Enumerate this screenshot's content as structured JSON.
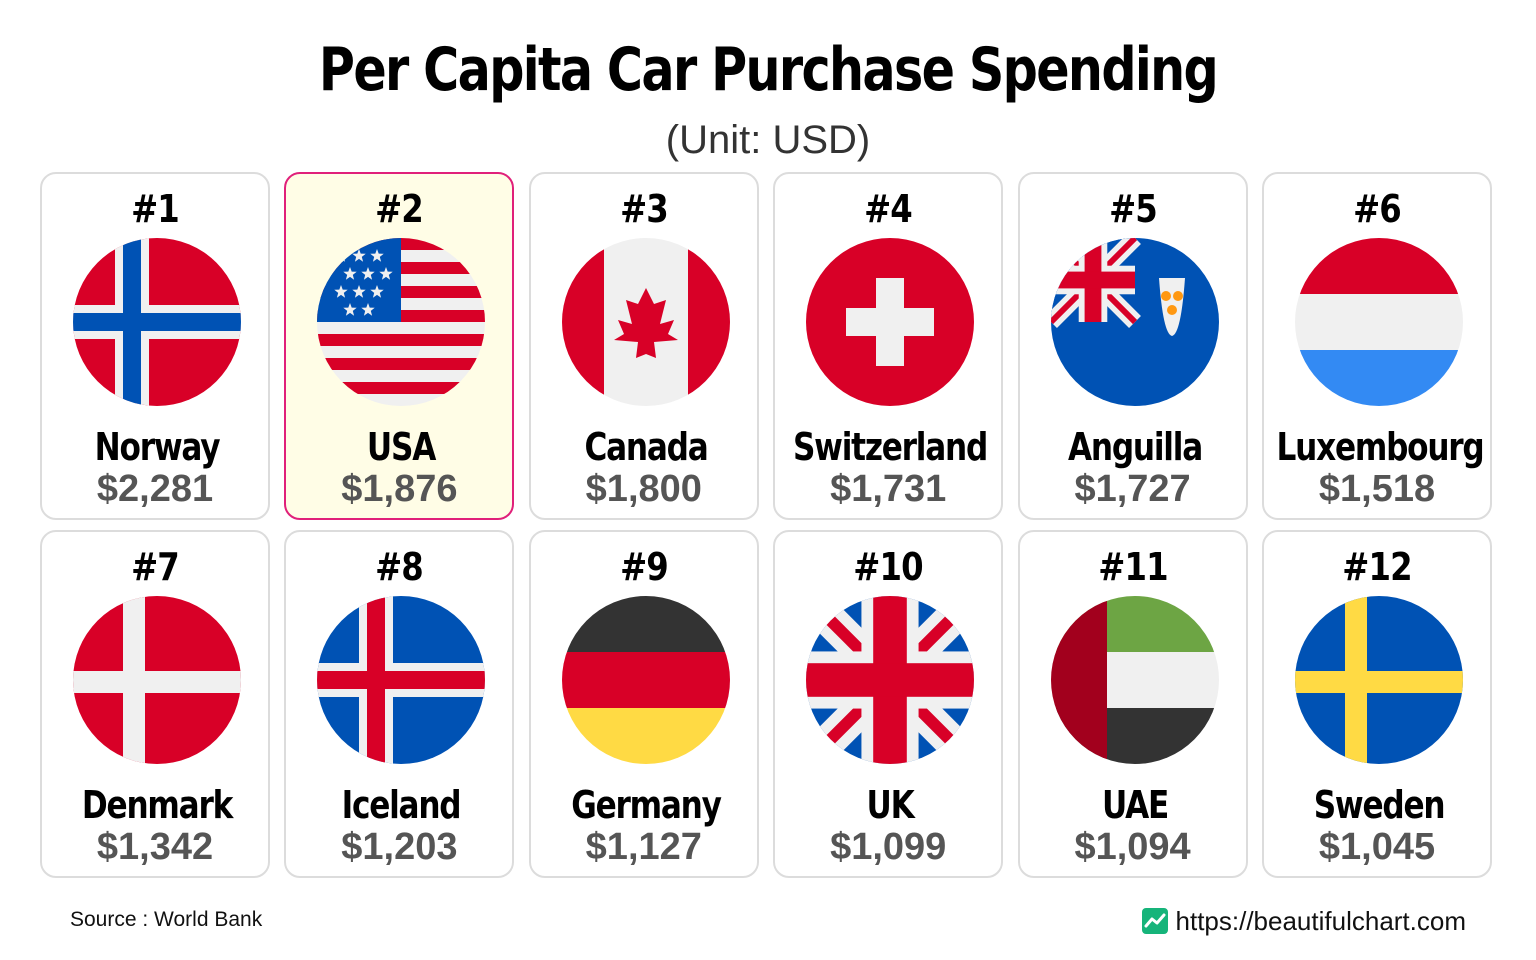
{
  "title": "Per Capita Car Purchase Spending",
  "subtitle": "(Unit: USD)",
  "source": "Source : World Bank",
  "brand_url": "https://beautifulchart.com",
  "brand_icon": "line-chart-icon",
  "highlight_color": "#e0207a",
  "chart_data": {
    "type": "table",
    "title": "Per Capita Car Purchase Spending",
    "subtitle": "(Unit: USD)",
    "unit": "USD",
    "items": [
      {
        "rank": "#1",
        "country": "Norway",
        "value": "$2,281",
        "amount": 2281,
        "flag": "norway-flag-icon",
        "highlight": false
      },
      {
        "rank": "#2",
        "country": "USA",
        "value": "$1,876",
        "amount": 1876,
        "flag": "usa-flag-icon",
        "highlight": true
      },
      {
        "rank": "#3",
        "country": "Canada",
        "value": "$1,800",
        "amount": 1800,
        "flag": "canada-flag-icon",
        "highlight": false
      },
      {
        "rank": "#4",
        "country": "Switzerland",
        "value": "$1,731",
        "amount": 1731,
        "flag": "switzerland-flag-icon",
        "highlight": false
      },
      {
        "rank": "#5",
        "country": "Anguilla",
        "value": "$1,727",
        "amount": 1727,
        "flag": "anguilla-flag-icon",
        "highlight": false
      },
      {
        "rank": "#6",
        "country": "Luxembourg",
        "value": "$1,518",
        "amount": 1518,
        "flag": "luxembourg-flag-icon",
        "highlight": false
      },
      {
        "rank": "#7",
        "country": "Denmark",
        "value": "$1,342",
        "amount": 1342,
        "flag": "denmark-flag-icon",
        "highlight": false
      },
      {
        "rank": "#8",
        "country": "Iceland",
        "value": "$1,203",
        "amount": 1203,
        "flag": "iceland-flag-icon",
        "highlight": false
      },
      {
        "rank": "#9",
        "country": "Germany",
        "value": "$1,127",
        "amount": 1127,
        "flag": "germany-flag-icon",
        "highlight": false
      },
      {
        "rank": "#10",
        "country": "UK",
        "value": "$1,099",
        "amount": 1099,
        "flag": "uk-flag-icon",
        "highlight": false
      },
      {
        "rank": "#11",
        "country": "UAE",
        "value": "$1,094",
        "amount": 1094,
        "flag": "uae-flag-icon",
        "highlight": false
      },
      {
        "rank": "#12",
        "country": "Sweden",
        "value": "$1,045",
        "amount": 1045,
        "flag": "sweden-flag-icon",
        "highlight": false
      }
    ]
  }
}
